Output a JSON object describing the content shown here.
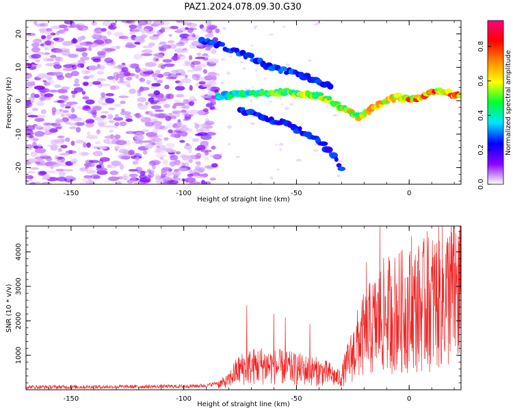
{
  "page_title": "PAZ1.2024.078.09.30.G30",
  "colorbar": {
    "label": "Normalized spectral amplitude",
    "range": [
      0,
      0.95
    ],
    "ticks": [
      0.0,
      0.2,
      0.4,
      0.6,
      0.8
    ],
    "tick_labels": [
      "0.0",
      "0.2",
      "0.4",
      "0.6",
      "0.8"
    ],
    "stops": [
      "#ffffff",
      "#8a00ff",
      "#0000ff",
      "#00e5ff",
      "#00ff33",
      "#ffff00",
      "#ff8800",
      "#ff0000",
      "#ff0080"
    ]
  },
  "chart_data": [
    {
      "type": "heatmap",
      "title": "PAZ1.2024.078.09.30.G30",
      "xlabel": "Height of straight line (km)",
      "ylabel": "Frequency (Hz)",
      "xlim": [
        -170,
        23
      ],
      "ylim": [
        -25,
        24
      ],
      "x_ticks": [
        -150,
        -100,
        -50,
        0
      ],
      "x_tick_labels": [
        "-150",
        "-100",
        "-50",
        "0"
      ],
      "y_ticks": [
        -20,
        -10,
        0,
        10,
        20
      ],
      "y_tick_labels": [
        "-20",
        "-10",
        "0",
        "10",
        "20"
      ],
      "colormap": "rainbow",
      "noise_region_x": [
        -170,
        -85
      ],
      "signal_ridge": [
        {
          "x": -85,
          "y": 1.5
        },
        {
          "x": -75,
          "y": 2
        },
        {
          "x": -65,
          "y": 2.5
        },
        {
          "x": -55,
          "y": 2.5
        },
        {
          "x": -45,
          "y": 2
        },
        {
          "x": -40,
          "y": 1.5
        },
        {
          "x": -35,
          "y": 0
        },
        {
          "x": -30,
          "y": -2
        },
        {
          "x": -25,
          "y": -4
        },
        {
          "x": -22,
          "y": -5
        },
        {
          "x": -18,
          "y": -3
        },
        {
          "x": -10,
          "y": 0
        },
        {
          "x": -5,
          "y": 1
        },
        {
          "x": 0,
          "y": 0.5
        },
        {
          "x": 5,
          "y": 1
        },
        {
          "x": 10,
          "y": 3
        },
        {
          "x": 15,
          "y": 3
        },
        {
          "x": 20,
          "y": 1.5
        },
        {
          "x": 23,
          "y": 1.5
        }
      ],
      "upper_branch": [
        {
          "x": -92,
          "y": 18
        },
        {
          "x": -85,
          "y": 17
        },
        {
          "x": -78,
          "y": 15
        },
        {
          "x": -70,
          "y": 13
        },
        {
          "x": -62,
          "y": 10
        },
        {
          "x": -55,
          "y": 9
        },
        {
          "x": -50,
          "y": 8
        },
        {
          "x": -45,
          "y": 7
        },
        {
          "x": -40,
          "y": 6
        },
        {
          "x": -35,
          "y": 4
        }
      ],
      "lower_branch": [
        {
          "x": -75,
          "y": -3
        },
        {
          "x": -65,
          "y": -5
        },
        {
          "x": -55,
          "y": -7
        },
        {
          "x": -48,
          "y": -9
        },
        {
          "x": -42,
          "y": -11
        },
        {
          "x": -37,
          "y": -14
        },
        {
          "x": -34,
          "y": -16
        },
        {
          "x": -30,
          "y": -20
        }
      ]
    },
    {
      "type": "line",
      "xlabel": "Height of straight line (km)",
      "ylabel": "SNR (10 * v/v)",
      "xlim": [
        -170,
        23
      ],
      "ylim": [
        0,
        4750
      ],
      "x_ticks": [
        -150,
        -100,
        -50,
        0
      ],
      "x_tick_labels": [
        "-150",
        "-100",
        "-50",
        "0"
      ],
      "y_ticks": [
        1000,
        2000,
        3000,
        4000
      ],
      "y_tick_labels": [
        "1000",
        "2000",
        "3000",
        "4000"
      ],
      "color": "#ee2222",
      "envelope": [
        {
          "x": -170,
          "y": 80
        },
        {
          "x": -150,
          "y": 80
        },
        {
          "x": -120,
          "y": 90
        },
        {
          "x": -100,
          "y": 100
        },
        {
          "x": -90,
          "y": 120
        },
        {
          "x": -85,
          "y": 200
        },
        {
          "x": -80,
          "y": 350
        },
        {
          "x": -78,
          "y": 600
        },
        {
          "x": -75,
          "y": 800
        },
        {
          "x": -70,
          "y": 900
        },
        {
          "x": -65,
          "y": 950
        },
        {
          "x": -60,
          "y": 900
        },
        {
          "x": -55,
          "y": 850
        },
        {
          "x": -50,
          "y": 800
        },
        {
          "x": -45,
          "y": 750
        },
        {
          "x": -40,
          "y": 700
        },
        {
          "x": -35,
          "y": 600
        },
        {
          "x": -32,
          "y": 450
        },
        {
          "x": -30,
          "y": 500
        },
        {
          "x": -28,
          "y": 900
        },
        {
          "x": -25,
          "y": 1400
        },
        {
          "x": -22,
          "y": 1900
        },
        {
          "x": -18,
          "y": 2300
        },
        {
          "x": -15,
          "y": 2500
        },
        {
          "x": -12,
          "y": 2800
        },
        {
          "x": -10,
          "y": 2900
        },
        {
          "x": -5,
          "y": 3000
        },
        {
          "x": 0,
          "y": 3100
        },
        {
          "x": 5,
          "y": 3200
        },
        {
          "x": 10,
          "y": 3400
        },
        {
          "x": 15,
          "y": 3600
        },
        {
          "x": 20,
          "y": 3800
        },
        {
          "x": 23,
          "y": 3900
        }
      ],
      "peaks": [
        {
          "x": -72,
          "y": 2450
        },
        {
          "x": -60,
          "y": 2200
        },
        {
          "x": -55,
          "y": 2100
        },
        {
          "x": -44,
          "y": 1900
        },
        {
          "x": -19,
          "y": 3700
        },
        {
          "x": -13,
          "y": 4750
        },
        {
          "x": -8,
          "y": 3300
        },
        {
          "x": 1,
          "y": 4450
        },
        {
          "x": 8,
          "y": 4600
        },
        {
          "x": 18,
          "y": 4450
        },
        {
          "x": 22,
          "y": 4300
        }
      ]
    }
  ]
}
